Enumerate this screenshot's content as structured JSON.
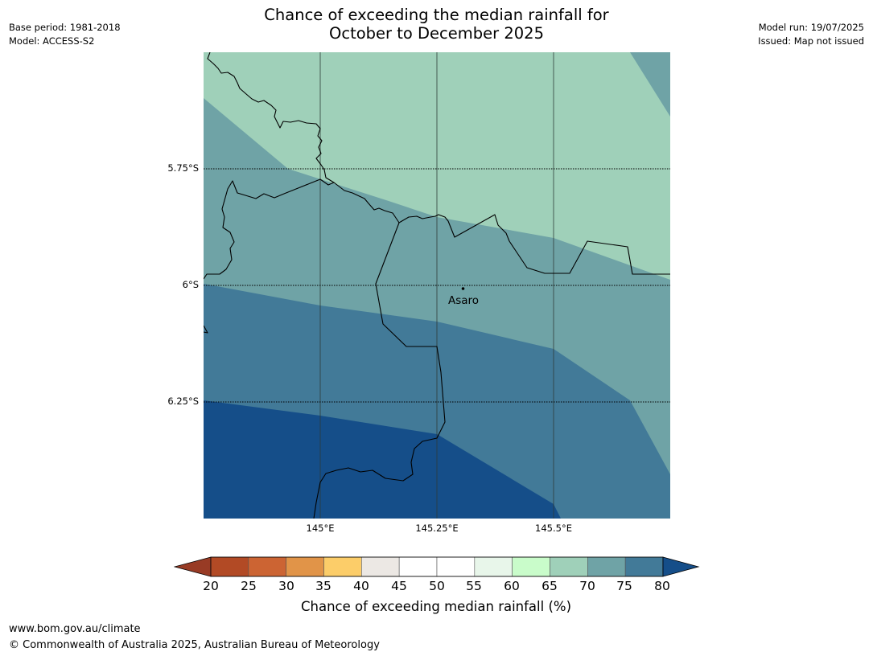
{
  "title": {
    "line1": "Chance of exceeding the median rainfall for",
    "line2": "October to December 2025"
  },
  "meta_left": {
    "base_period": "Base period: 1981-2018",
    "model": "Model: ACCESS-S2"
  },
  "meta_right": {
    "model_run": "Model run: 19/07/2025",
    "issued": "Issued: Map not issued"
  },
  "map": {
    "lat_labels": [
      "5.75°S",
      "6°S",
      "6.25°S"
    ],
    "lon_labels": [
      "145°E",
      "145.25°E",
      "145.5°E"
    ],
    "place_label": "Asaro",
    "legend_colors": {
      "65-70": "#9fd0b9",
      "70-75": "#6fa3a6",
      "75-80": "#427a98",
      "80+": "#154e89"
    }
  },
  "colorbar": {
    "ticks": [
      "20",
      "25",
      "30",
      "35",
      "40",
      "45",
      "50",
      "55",
      "60",
      "65",
      "70",
      "75",
      "80"
    ],
    "colors": [
      "#b24a25",
      "#cc6433",
      "#e19448",
      "#fccd69",
      "#ece8e4",
      "#ffffff",
      "#ffffff",
      "#e8f6ea",
      "#c9fcca",
      "#9fd0b9",
      "#6fa3a6",
      "#427a98"
    ],
    "under_color": "#983b25",
    "over_color": "#154e89",
    "label": "Chance of exceeding median rainfall (%)"
  },
  "footer": {
    "url": "www.bom.gov.au/climate",
    "copyright": "© Commonwealth of Australia 2025, Australian Bureau of Meteorology"
  }
}
